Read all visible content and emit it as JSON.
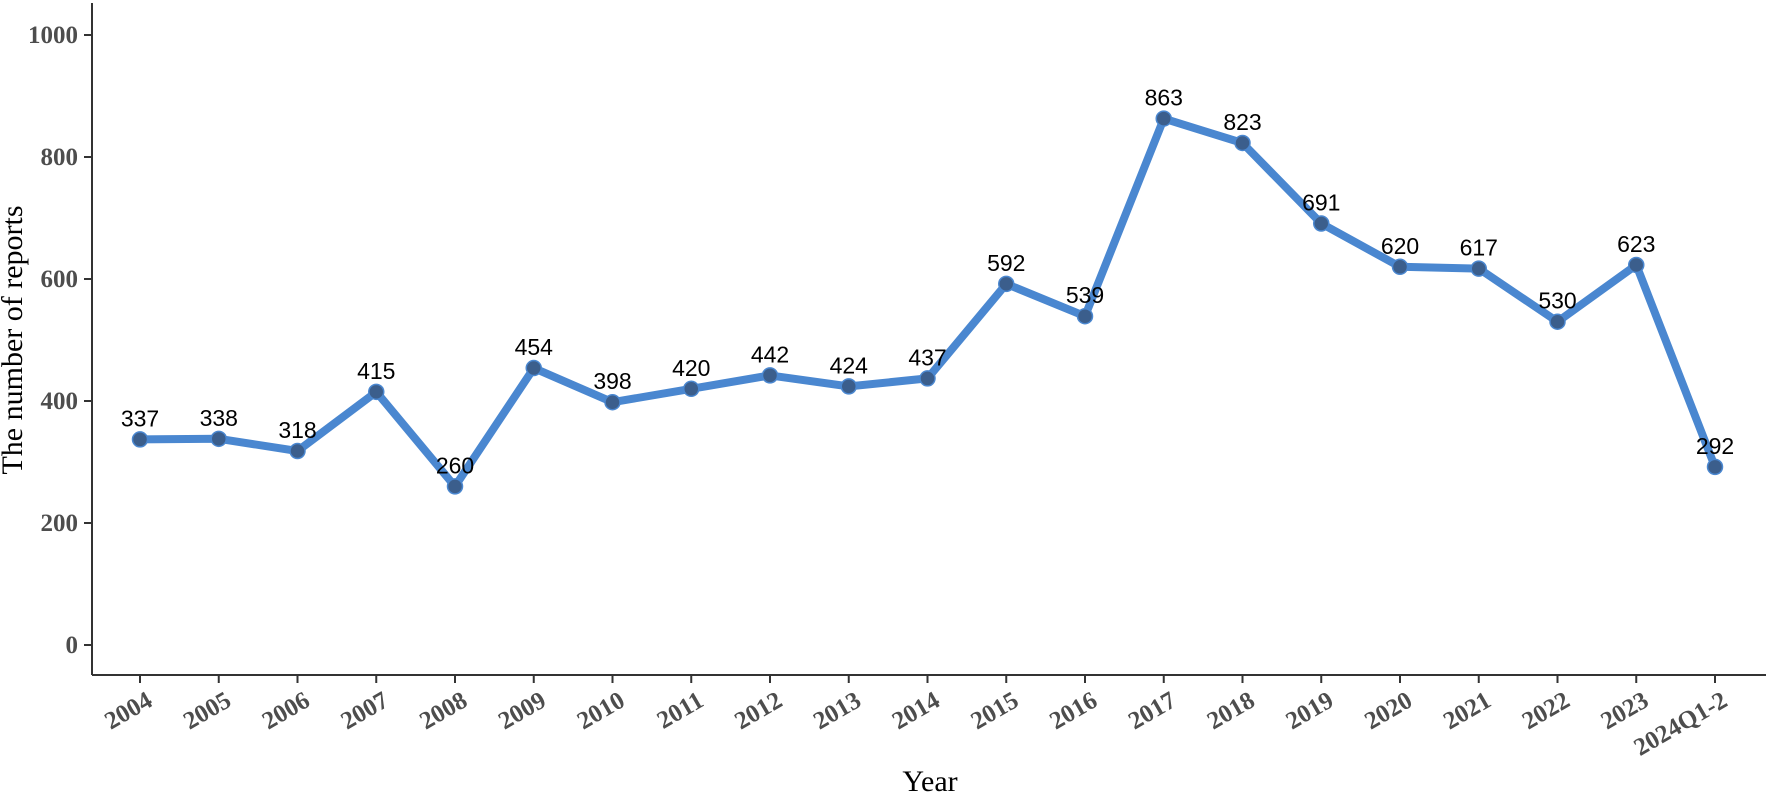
{
  "chart_data": {
    "type": "line",
    "categories": [
      "2004",
      "2005",
      "2006",
      "2007",
      "2008",
      "2009",
      "2010",
      "2011",
      "2012",
      "2013",
      "2014",
      "2015",
      "2016",
      "2017",
      "2018",
      "2019",
      "2020",
      "2021",
      "2022",
      "2023",
      "2024Q1-2"
    ],
    "series": [
      {
        "values": [
          337,
          338,
          318,
          415,
          260,
          454,
          398,
          420,
          442,
          424,
          437,
          592,
          539,
          863,
          823,
          691,
          620,
          617,
          530,
          623,
          292
        ]
      }
    ],
    "data_labels": [
      "337",
      "338",
      "318",
      "415",
      "260",
      "454",
      "398",
      "420",
      "442",
      "424",
      "437",
      "592",
      "539",
      "863",
      "823",
      "691",
      "620",
      "617",
      "530",
      "623",
      "292"
    ],
    "yticks": [
      "0",
      "200",
      "400",
      "600",
      "800",
      "1000"
    ],
    "ytick_values": [
      0,
      200,
      400,
      600,
      800,
      1000
    ],
    "xlabel": "Year",
    "ylabel": "The number of reports",
    "ylim": [
      -50,
      1050
    ],
    "grid": false,
    "legend": "none",
    "colors": {
      "line": "#4a87d0",
      "marker": "#3b5e8c",
      "axis": "#333333",
      "text": "#000000"
    }
  }
}
